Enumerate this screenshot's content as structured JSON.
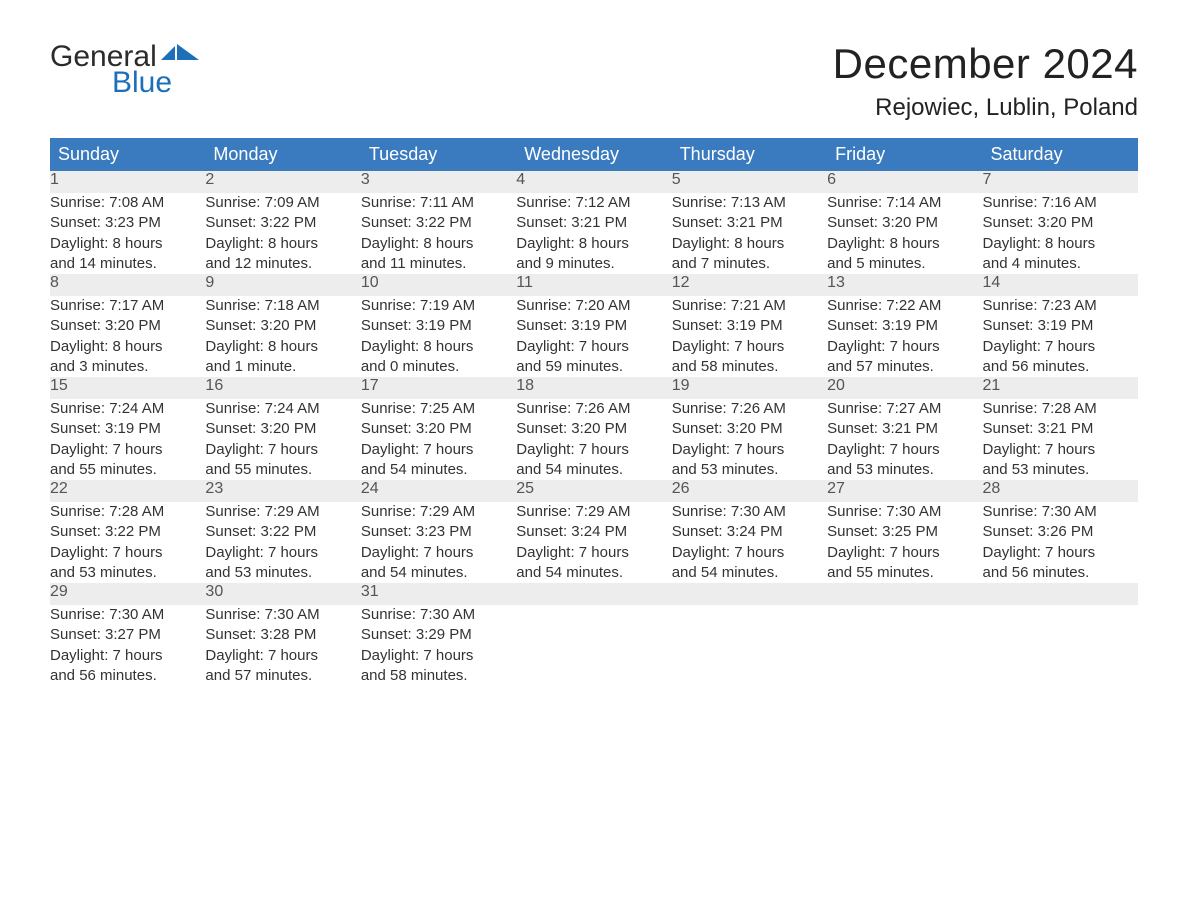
{
  "brand": {
    "part1": "General",
    "part2": "Blue"
  },
  "title": "December 2024",
  "location": "Rejowiec, Lublin, Poland",
  "colors": {
    "header_bg": "#3a7bbf",
    "header_text": "#ffffff",
    "daynum_bg": "#ededed",
    "rule": "#3a7bbf",
    "brand_blue": "#1c6fb8"
  },
  "weekdays": [
    "Sunday",
    "Monday",
    "Tuesday",
    "Wednesday",
    "Thursday",
    "Friday",
    "Saturday"
  ],
  "weeks": [
    [
      {
        "n": "1",
        "sr": "Sunrise: 7:08 AM",
        "ss": "Sunset: 3:23 PM",
        "d1": "Daylight: 8 hours",
        "d2": "and 14 minutes."
      },
      {
        "n": "2",
        "sr": "Sunrise: 7:09 AM",
        "ss": "Sunset: 3:22 PM",
        "d1": "Daylight: 8 hours",
        "d2": "and 12 minutes."
      },
      {
        "n": "3",
        "sr": "Sunrise: 7:11 AM",
        "ss": "Sunset: 3:22 PM",
        "d1": "Daylight: 8 hours",
        "d2": "and 11 minutes."
      },
      {
        "n": "4",
        "sr": "Sunrise: 7:12 AM",
        "ss": "Sunset: 3:21 PM",
        "d1": "Daylight: 8 hours",
        "d2": "and 9 minutes."
      },
      {
        "n": "5",
        "sr": "Sunrise: 7:13 AM",
        "ss": "Sunset: 3:21 PM",
        "d1": "Daylight: 8 hours",
        "d2": "and 7 minutes."
      },
      {
        "n": "6",
        "sr": "Sunrise: 7:14 AM",
        "ss": "Sunset: 3:20 PM",
        "d1": "Daylight: 8 hours",
        "d2": "and 5 minutes."
      },
      {
        "n": "7",
        "sr": "Sunrise: 7:16 AM",
        "ss": "Sunset: 3:20 PM",
        "d1": "Daylight: 8 hours",
        "d2": "and 4 minutes."
      }
    ],
    [
      {
        "n": "8",
        "sr": "Sunrise: 7:17 AM",
        "ss": "Sunset: 3:20 PM",
        "d1": "Daylight: 8 hours",
        "d2": "and 3 minutes."
      },
      {
        "n": "9",
        "sr": "Sunrise: 7:18 AM",
        "ss": "Sunset: 3:20 PM",
        "d1": "Daylight: 8 hours",
        "d2": "and 1 minute."
      },
      {
        "n": "10",
        "sr": "Sunrise: 7:19 AM",
        "ss": "Sunset: 3:19 PM",
        "d1": "Daylight: 8 hours",
        "d2": "and 0 minutes."
      },
      {
        "n": "11",
        "sr": "Sunrise: 7:20 AM",
        "ss": "Sunset: 3:19 PM",
        "d1": "Daylight: 7 hours",
        "d2": "and 59 minutes."
      },
      {
        "n": "12",
        "sr": "Sunrise: 7:21 AM",
        "ss": "Sunset: 3:19 PM",
        "d1": "Daylight: 7 hours",
        "d2": "and 58 minutes."
      },
      {
        "n": "13",
        "sr": "Sunrise: 7:22 AM",
        "ss": "Sunset: 3:19 PM",
        "d1": "Daylight: 7 hours",
        "d2": "and 57 minutes."
      },
      {
        "n": "14",
        "sr": "Sunrise: 7:23 AM",
        "ss": "Sunset: 3:19 PM",
        "d1": "Daylight: 7 hours",
        "d2": "and 56 minutes."
      }
    ],
    [
      {
        "n": "15",
        "sr": "Sunrise: 7:24 AM",
        "ss": "Sunset: 3:19 PM",
        "d1": "Daylight: 7 hours",
        "d2": "and 55 minutes."
      },
      {
        "n": "16",
        "sr": "Sunrise: 7:24 AM",
        "ss": "Sunset: 3:20 PM",
        "d1": "Daylight: 7 hours",
        "d2": "and 55 minutes."
      },
      {
        "n": "17",
        "sr": "Sunrise: 7:25 AM",
        "ss": "Sunset: 3:20 PM",
        "d1": "Daylight: 7 hours",
        "d2": "and 54 minutes."
      },
      {
        "n": "18",
        "sr": "Sunrise: 7:26 AM",
        "ss": "Sunset: 3:20 PM",
        "d1": "Daylight: 7 hours",
        "d2": "and 54 minutes."
      },
      {
        "n": "19",
        "sr": "Sunrise: 7:26 AM",
        "ss": "Sunset: 3:20 PM",
        "d1": "Daylight: 7 hours",
        "d2": "and 53 minutes."
      },
      {
        "n": "20",
        "sr": "Sunrise: 7:27 AM",
        "ss": "Sunset: 3:21 PM",
        "d1": "Daylight: 7 hours",
        "d2": "and 53 minutes."
      },
      {
        "n": "21",
        "sr": "Sunrise: 7:28 AM",
        "ss": "Sunset: 3:21 PM",
        "d1": "Daylight: 7 hours",
        "d2": "and 53 minutes."
      }
    ],
    [
      {
        "n": "22",
        "sr": "Sunrise: 7:28 AM",
        "ss": "Sunset: 3:22 PM",
        "d1": "Daylight: 7 hours",
        "d2": "and 53 minutes."
      },
      {
        "n": "23",
        "sr": "Sunrise: 7:29 AM",
        "ss": "Sunset: 3:22 PM",
        "d1": "Daylight: 7 hours",
        "d2": "and 53 minutes."
      },
      {
        "n": "24",
        "sr": "Sunrise: 7:29 AM",
        "ss": "Sunset: 3:23 PM",
        "d1": "Daylight: 7 hours",
        "d2": "and 54 minutes."
      },
      {
        "n": "25",
        "sr": "Sunrise: 7:29 AM",
        "ss": "Sunset: 3:24 PM",
        "d1": "Daylight: 7 hours",
        "d2": "and 54 minutes."
      },
      {
        "n": "26",
        "sr": "Sunrise: 7:30 AM",
        "ss": "Sunset: 3:24 PM",
        "d1": "Daylight: 7 hours",
        "d2": "and 54 minutes."
      },
      {
        "n": "27",
        "sr": "Sunrise: 7:30 AM",
        "ss": "Sunset: 3:25 PM",
        "d1": "Daylight: 7 hours",
        "d2": "and 55 minutes."
      },
      {
        "n": "28",
        "sr": "Sunrise: 7:30 AM",
        "ss": "Sunset: 3:26 PM",
        "d1": "Daylight: 7 hours",
        "d2": "and 56 minutes."
      }
    ],
    [
      {
        "n": "29",
        "sr": "Sunrise: 7:30 AM",
        "ss": "Sunset: 3:27 PM",
        "d1": "Daylight: 7 hours",
        "d2": "and 56 minutes."
      },
      {
        "n": "30",
        "sr": "Sunrise: 7:30 AM",
        "ss": "Sunset: 3:28 PM",
        "d1": "Daylight: 7 hours",
        "d2": "and 57 minutes."
      },
      {
        "n": "31",
        "sr": "Sunrise: 7:30 AM",
        "ss": "Sunset: 3:29 PM",
        "d1": "Daylight: 7 hours",
        "d2": "and 58 minutes."
      },
      null,
      null,
      null,
      null
    ]
  ]
}
